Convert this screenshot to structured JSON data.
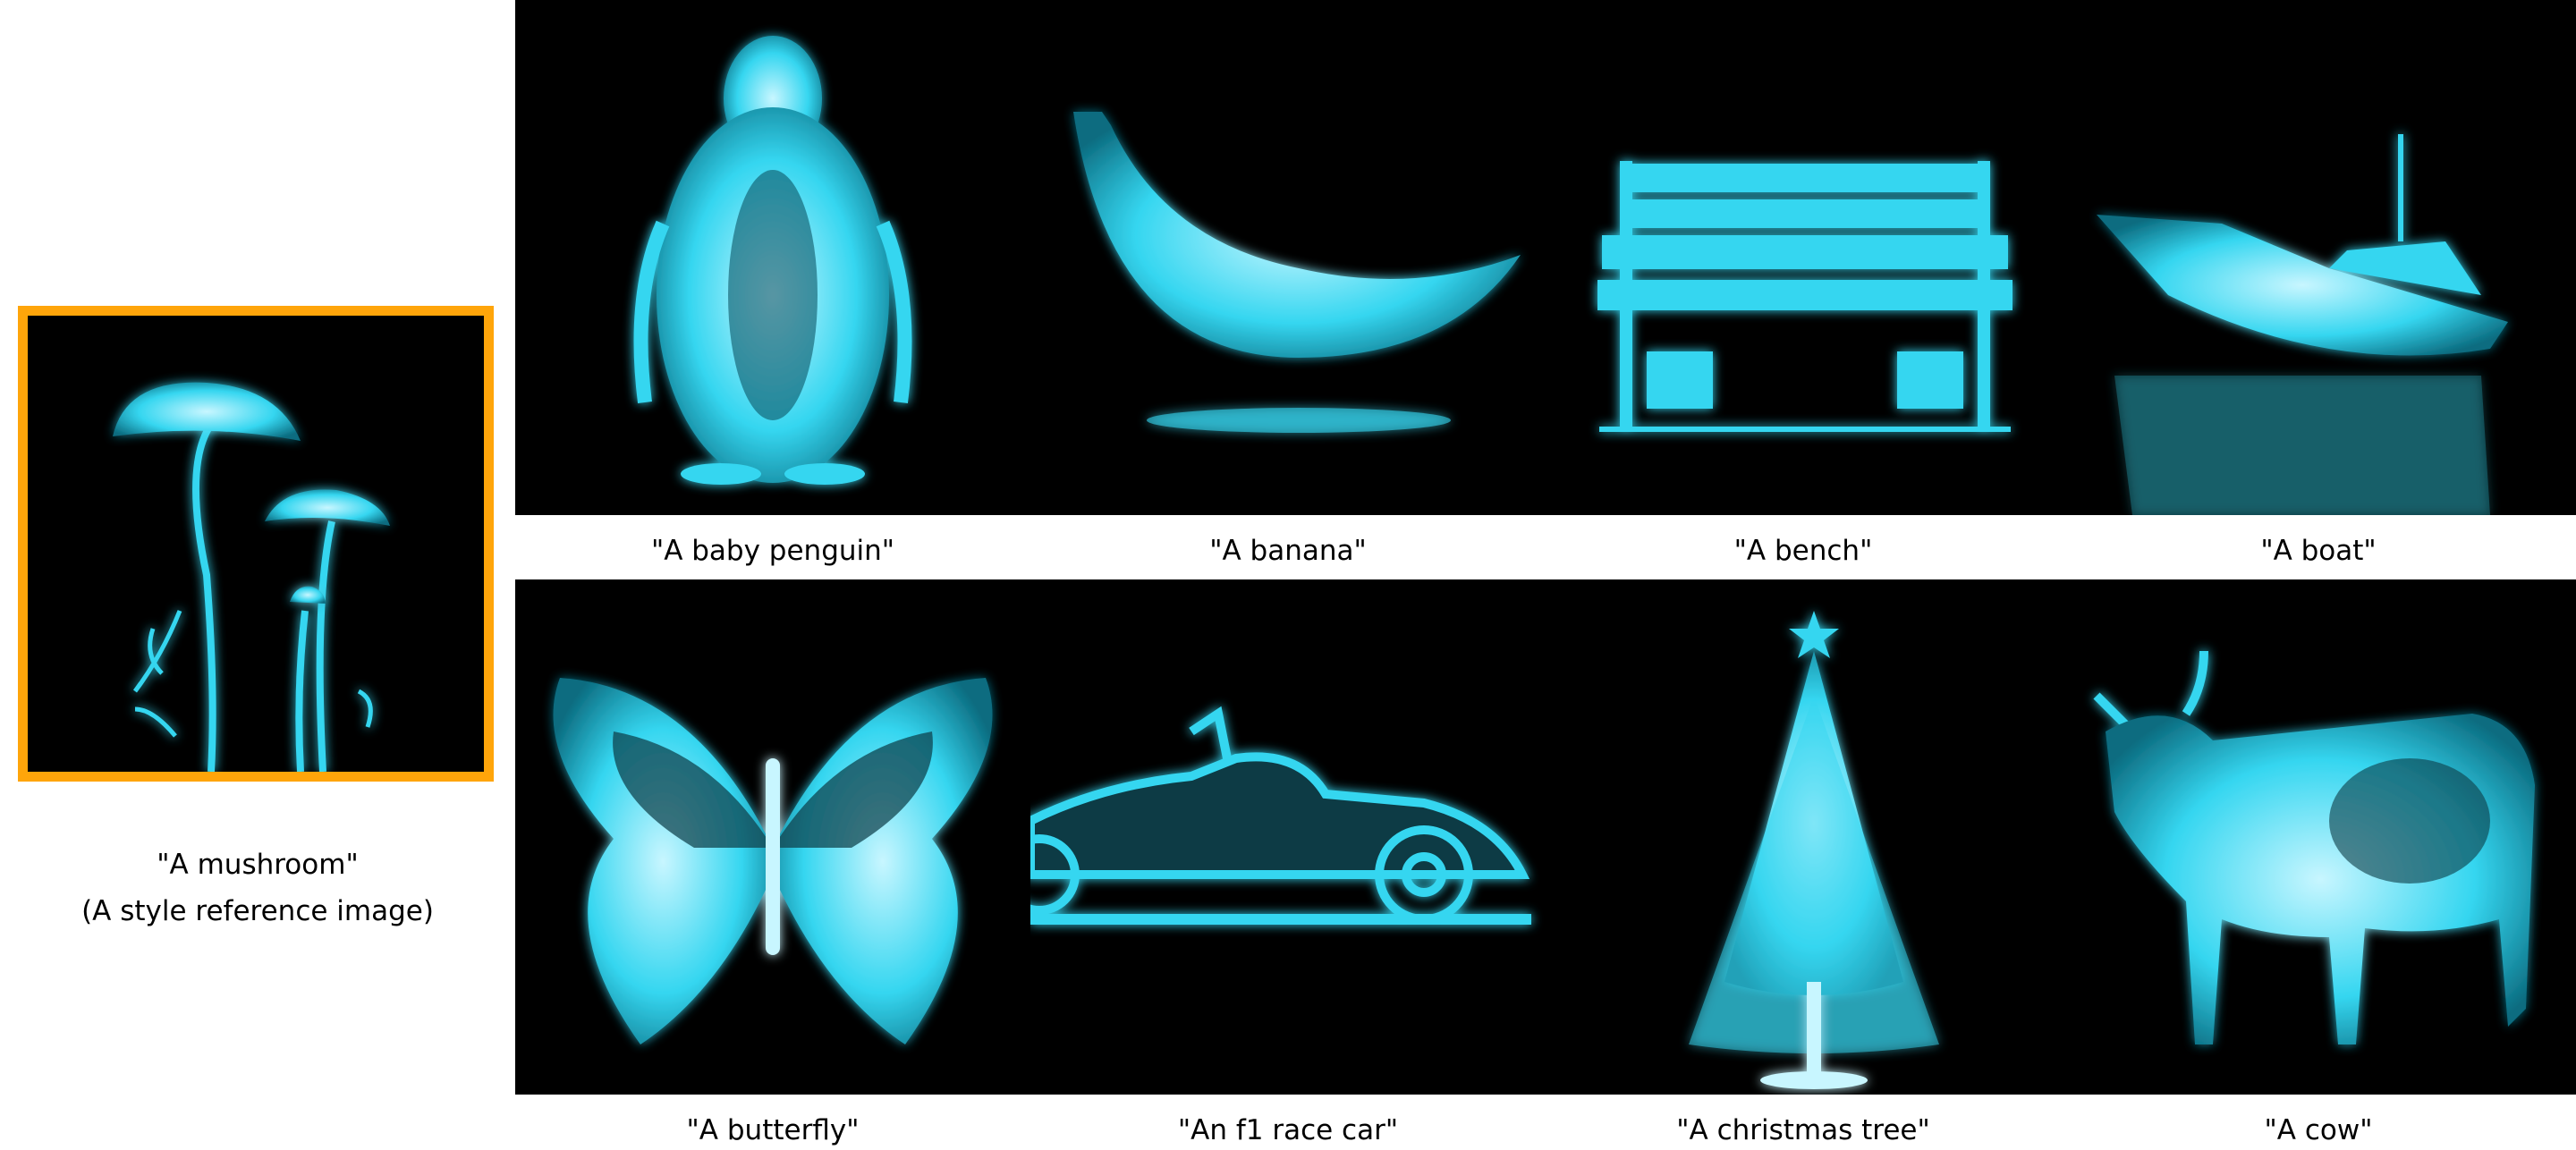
{
  "reference": {
    "caption_line1": "\"A mushroom\"",
    "caption_line2": "(A style reference image)",
    "frame_color": "#ffa50a",
    "icon": "mushroom-icon"
  },
  "grid": {
    "glow_color": "#35d6f0",
    "items": [
      {
        "caption": "\"A baby penguin\"",
        "icon": "penguin-icon"
      },
      {
        "caption": "\"A banana\"",
        "icon": "banana-icon"
      },
      {
        "caption": "\"A bench\"",
        "icon": "bench-icon"
      },
      {
        "caption": "\"A boat\"",
        "icon": "boat-icon"
      },
      {
        "caption": "\"A butterfly\"",
        "icon": "butterfly-icon"
      },
      {
        "caption": "\"An f1 race car\"",
        "icon": "race-car-icon"
      },
      {
        "caption": "\"A christmas tree\"",
        "icon": "christmas-tree-icon"
      },
      {
        "caption": "\"A cow\"",
        "icon": "cow-icon"
      }
    ]
  }
}
